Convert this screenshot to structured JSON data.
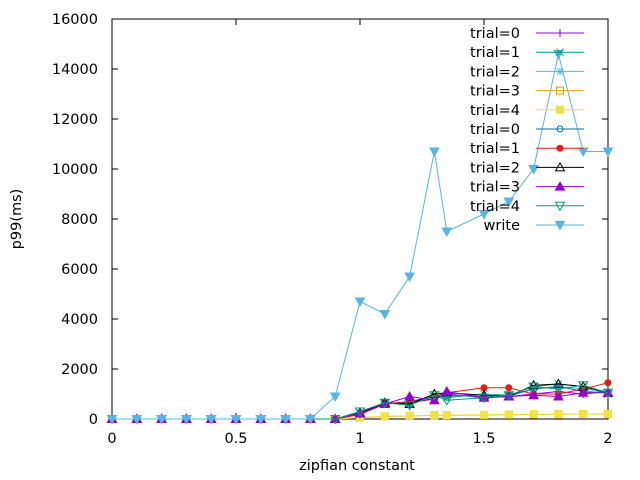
{
  "chart_data": {
    "type": "line",
    "title": "",
    "xlabel": "zipfian constant",
    "ylabel": "p99(ms)",
    "xlim": [
      0,
      2
    ],
    "ylim": [
      0,
      16000
    ],
    "xticks": [
      0,
      0.5,
      1,
      1.5,
      2
    ],
    "xtick_labels": [
      "0",
      "0.5",
      "1",
      "1.5",
      "2"
    ],
    "yticks": [
      0,
      2000,
      4000,
      6000,
      8000,
      10000,
      12000,
      14000,
      16000
    ],
    "ytick_labels": [
      "0",
      "2000",
      "4000",
      "6000",
      "8000",
      "10000",
      "12000",
      "14000",
      "16000"
    ],
    "grid": false,
    "legend_position": "top-right",
    "x": [
      0,
      0.1,
      0.2,
      0.3,
      0.4,
      0.5,
      0.6,
      0.7,
      0.8,
      0.9,
      1.0,
      1.1,
      1.2,
      1.3,
      1.35,
      1.5,
      1.6,
      1.7,
      1.8,
      1.9,
      2.0
    ],
    "series": [
      {
        "name": "trial=0",
        "color": "#9400d3",
        "marker": "plus",
        "values": [
          0,
          0,
          0,
          0,
          0,
          0,
          0,
          0,
          0,
          0,
          200,
          600,
          650,
          800,
          1000,
          850,
          900,
          1000,
          1100,
          1000,
          1100
        ]
      },
      {
        "name": "trial=1",
        "color": "#009e73",
        "marker": "cross",
        "values": [
          0,
          0,
          0,
          0,
          0,
          0,
          0,
          0,
          0,
          0,
          250,
          650,
          600,
          900,
          850,
          1000,
          950,
          1300,
          1400,
          1300,
          1000
        ]
      },
      {
        "name": "trial=2",
        "color": "#56b4e9",
        "marker": "star",
        "values": [
          0,
          0,
          0,
          0,
          0,
          0,
          0,
          0,
          0,
          0,
          200,
          600,
          700,
          850,
          900,
          1000,
          900,
          1200,
          1300,
          1200,
          1100
        ]
      },
      {
        "name": "trial=3",
        "color": "#e69f00",
        "marker": "square",
        "values": [
          0,
          0,
          0,
          0,
          0,
          0,
          0,
          0,
          0,
          0,
          50,
          100,
          120,
          150,
          150,
          160,
          170,
          180,
          190,
          200,
          200
        ]
      },
      {
        "name": "trial=4",
        "color": "#f0e442",
        "marker": "square-filled",
        "values": [
          0,
          0,
          0,
          0,
          0,
          0,
          0,
          0,
          0,
          0,
          60,
          110,
          130,
          150,
          160,
          170,
          180,
          190,
          190,
          200,
          210
        ]
      },
      {
        "name": "trial=0",
        "color": "#0072b2",
        "marker": "circle",
        "values": [
          0,
          0,
          0,
          0,
          0,
          0,
          0,
          0,
          0,
          0,
          200,
          650,
          620,
          900,
          950,
          900,
          950,
          1200,
          1300,
          1100,
          1050
        ]
      },
      {
        "name": "trial=1",
        "color": "#e51e10",
        "marker": "circle-filled",
        "values": [
          0,
          0,
          0,
          0,
          0,
          0,
          0,
          0,
          0,
          0,
          180,
          600,
          700,
          900,
          1050,
          1250,
          1250,
          1000,
          1000,
          1200,
          1450
        ]
      },
      {
        "name": "trial=2",
        "color": "#000000",
        "marker": "triangle",
        "values": [
          0,
          0,
          0,
          0,
          0,
          0,
          0,
          0,
          0,
          0,
          250,
          650,
          600,
          1000,
          1050,
          950,
          900,
          1350,
          1400,
          1300,
          1050
        ]
      },
      {
        "name": "trial=3",
        "color": "#9400d3",
        "marker": "triangle-filled",
        "values": [
          0,
          0,
          0,
          0,
          0,
          0,
          0,
          0,
          0,
          0,
          220,
          600,
          900,
          750,
          1100,
          850,
          900,
          950,
          900,
          1050,
          1050
        ]
      },
      {
        "name": "trial=4",
        "color": "#009e73",
        "marker": "triangle-down",
        "values": [
          0,
          0,
          0,
          0,
          0,
          0,
          0,
          0,
          0,
          0,
          300,
          650,
          550,
          950,
          750,
          850,
          950,
          1300,
          1200,
          1350,
          1050
        ]
      },
      {
        "name": "write",
        "color": "#56b4e9",
        "marker": "triangle-down-filled",
        "values": [
          0,
          0,
          0,
          0,
          0,
          0,
          0,
          0,
          0,
          900,
          4700,
          4200,
          5700,
          10700,
          7500,
          8200,
          8700,
          10000,
          14600,
          10700,
          10700
        ]
      }
    ]
  }
}
